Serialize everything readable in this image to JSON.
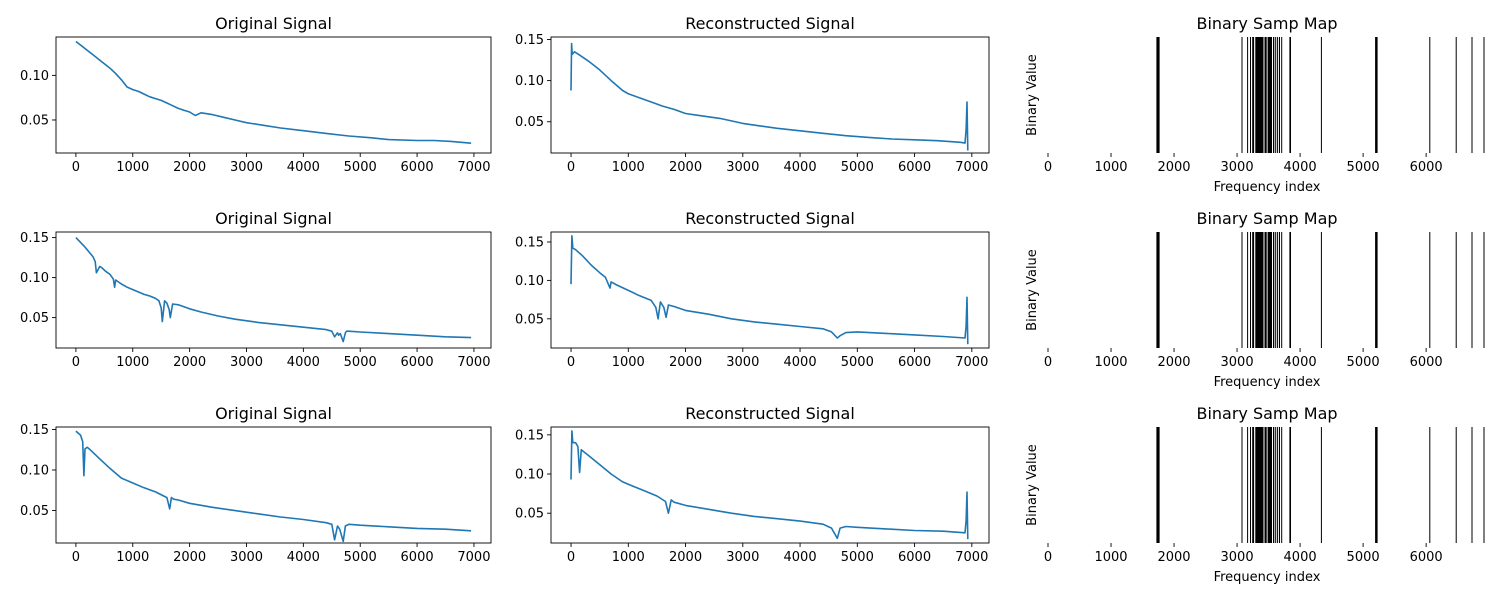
{
  "chart_data": [
    {
      "type": "line",
      "title": "Original Signal",
      "xlabel": "",
      "ylabel": "",
      "xlim": [
        -350,
        7300
      ],
      "ylim": [
        0.013,
        0.143
      ],
      "xticks": [
        0,
        1000,
        2000,
        3000,
        4000,
        5000,
        6000,
        7000
      ],
      "yticks": [
        0.05,
        0.1
      ],
      "ytick_labels": [
        "0.05",
        "0.10"
      ],
      "color": "#1f77b4",
      "legend": "none",
      "series": [
        {
          "x": [
            0,
            100,
            200,
            300,
            400,
            500,
            600,
            700,
            800,
            900,
            1000,
            1100,
            1200,
            1300,
            1400,
            1500,
            1600,
            1700,
            1800,
            1900,
            2000,
            2100,
            2200,
            2300,
            2400,
            2600,
            2800,
            3000,
            3300,
            3600,
            4000,
            4400,
            4800,
            5200,
            5500,
            6000,
            6300,
            6600,
            6950
          ],
          "y": [
            0.138,
            0.133,
            0.128,
            0.123,
            0.118,
            0.113,
            0.108,
            0.102,
            0.095,
            0.087,
            0.084,
            0.082,
            0.079,
            0.076,
            0.074,
            0.072,
            0.069,
            0.066,
            0.063,
            0.061,
            0.059,
            0.055,
            0.058,
            0.057,
            0.056,
            0.053,
            0.05,
            0.047,
            0.044,
            0.041,
            0.038,
            0.035,
            0.032,
            0.03,
            0.028,
            0.027,
            0.027,
            0.026,
            0.024
          ]
        }
      ]
    },
    {
      "type": "line",
      "title": "Reconstructed Signal",
      "xlabel": "",
      "ylabel": "",
      "xlim": [
        -350,
        7300
      ],
      "ylim": [
        0.012,
        0.153
      ],
      "xticks": [
        0,
        1000,
        2000,
        3000,
        4000,
        5000,
        6000,
        7000
      ],
      "yticks": [
        0.05,
        0.1,
        0.15
      ],
      "ytick_labels": [
        "0.05",
        "0.10",
        "0.15"
      ],
      "color": "#1f77b4",
      "legend": "none",
      "series": [
        {
          "x": [
            0,
            10,
            20,
            60,
            150,
            300,
            500,
            700,
            900,
            1000,
            1200,
            1400,
            1600,
            1800,
            2000,
            2200,
            2400,
            2600,
            2800,
            3000,
            3300,
            3600,
            4000,
            4400,
            4800,
            5200,
            5600,
            6000,
            6400,
            6800,
            6880,
            6900,
            6915,
            6930
          ],
          "y": [
            0.088,
            0.145,
            0.132,
            0.135,
            0.131,
            0.124,
            0.113,
            0.1,
            0.088,
            0.084,
            0.079,
            0.074,
            0.069,
            0.065,
            0.06,
            0.058,
            0.056,
            0.054,
            0.051,
            0.048,
            0.045,
            0.042,
            0.039,
            0.036,
            0.033,
            0.031,
            0.029,
            0.028,
            0.027,
            0.025,
            0.024,
            0.04,
            0.074,
            0.015
          ]
        }
      ]
    },
    {
      "type": "heatmap",
      "title": "Binary Samp Map",
      "xlabel": "Frequency index",
      "ylabel": "Binary Value",
      "xlim": [
        0,
        6950
      ],
      "xticks": [
        0,
        1000,
        2000,
        3000,
        4000,
        5000,
        6000
      ],
      "yticks": [],
      "values": [
        0,
        1
      ],
      "colors": [
        "#ffffff",
        "#000000"
      ],
      "legend": "none",
      "sampled_index_ranges": [
        [
          1720,
          1770
        ],
        [
          3070,
          3085
        ],
        [
          3160,
          3175
        ],
        [
          3205,
          3215
        ],
        [
          3240,
          3270
        ],
        [
          3290,
          3420
        ],
        [
          3435,
          3470
        ],
        [
          3485,
          3555
        ],
        [
          3570,
          3590
        ],
        [
          3605,
          3615
        ],
        [
          3635,
          3650
        ],
        [
          3665,
          3675
        ],
        [
          3700,
          3710
        ],
        [
          3830,
          3855
        ],
        [
          4330,
          4340
        ],
        [
          5190,
          5230
        ],
        [
          6050,
          6060
        ],
        [
          6470,
          6480
        ],
        [
          6720,
          6735
        ],
        [
          6910,
          6925
        ]
      ]
    },
    {
      "type": "line",
      "title": "Original Signal",
      "xlabel": "",
      "ylabel": "",
      "xlim": [
        -350,
        7300
      ],
      "ylim": [
        0.012,
        0.157
      ],
      "xticks": [
        0,
        1000,
        2000,
        3000,
        4000,
        5000,
        6000,
        7000
      ],
      "yticks": [
        0.05,
        0.1,
        0.15
      ],
      "ytick_labels": [
        "0.05",
        "0.10",
        "0.15"
      ],
      "color": "#1f77b4",
      "legend": "none",
      "series": [
        {
          "x": [
            0,
            150,
            300,
            340,
            360,
            420,
            460,
            520,
            600,
            660,
            680,
            700,
            740,
            800,
            900,
            1000,
            1100,
            1200,
            1300,
            1400,
            1460,
            1500,
            1520,
            1560,
            1600,
            1640,
            1660,
            1700,
            1800,
            2000,
            2200,
            2500,
            2800,
            3200,
            3600,
            4000,
            4400,
            4500,
            4550,
            4600,
            4620,
            4650,
            4700,
            4740,
            4760,
            4800,
            5000,
            5500,
            6000,
            6500,
            6950
          ],
          "y": [
            0.15,
            0.139,
            0.126,
            0.12,
            0.106,
            0.114,
            0.112,
            0.108,
            0.104,
            0.098,
            0.088,
            0.097,
            0.095,
            0.092,
            0.088,
            0.085,
            0.082,
            0.079,
            0.077,
            0.074,
            0.071,
            0.062,
            0.045,
            0.071,
            0.068,
            0.06,
            0.05,
            0.067,
            0.066,
            0.061,
            0.057,
            0.052,
            0.048,
            0.044,
            0.041,
            0.038,
            0.035,
            0.033,
            0.026,
            0.031,
            0.028,
            0.03,
            0.02,
            0.031,
            0.033,
            0.033,
            0.032,
            0.03,
            0.028,
            0.026,
            0.025
          ]
        }
      ]
    },
    {
      "type": "line",
      "title": "Reconstructed Signal",
      "xlabel": "",
      "ylabel": "",
      "xlim": [
        -350,
        7300
      ],
      "ylim": [
        0.012,
        0.163
      ],
      "xticks": [
        0,
        1000,
        2000,
        3000,
        4000,
        5000,
        6000,
        7000
      ],
      "yticks": [
        0.05,
        0.1,
        0.15
      ],
      "ytick_labels": [
        "0.05",
        "0.10",
        "0.15"
      ],
      "color": "#1f77b4",
      "legend": "none",
      "series": [
        {
          "x": [
            0,
            15,
            30,
            80,
            200,
            350,
            500,
            600,
            680,
            700,
            800,
            1000,
            1200,
            1400,
            1480,
            1520,
            1560,
            1620,
            1660,
            1700,
            1800,
            2000,
            2400,
            2800,
            3200,
            3600,
            4000,
            4400,
            4550,
            4650,
            4700,
            4800,
            5000,
            5500,
            6000,
            6500,
            6880,
            6900,
            6915,
            6930
          ],
          "y": [
            0.095,
            0.158,
            0.142,
            0.14,
            0.132,
            0.12,
            0.11,
            0.104,
            0.09,
            0.098,
            0.094,
            0.087,
            0.08,
            0.074,
            0.065,
            0.05,
            0.072,
            0.065,
            0.052,
            0.068,
            0.066,
            0.061,
            0.056,
            0.05,
            0.046,
            0.043,
            0.04,
            0.037,
            0.033,
            0.025,
            0.028,
            0.032,
            0.033,
            0.031,
            0.029,
            0.027,
            0.025,
            0.04,
            0.078,
            0.017
          ]
        }
      ]
    },
    {
      "type": "heatmap",
      "title": "Binary Samp Map",
      "xlabel": "Frequency index",
      "ylabel": "Binary Value",
      "xlim": [
        0,
        6950
      ],
      "xticks": [
        0,
        1000,
        2000,
        3000,
        4000,
        5000,
        6000
      ],
      "yticks": [],
      "values": [
        0,
        1
      ],
      "colors": [
        "#ffffff",
        "#000000"
      ],
      "legend": "none",
      "sampled_index_ranges": [
        [
          1720,
          1770
        ],
        [
          3070,
          3085
        ],
        [
          3160,
          3175
        ],
        [
          3205,
          3215
        ],
        [
          3240,
          3270
        ],
        [
          3290,
          3420
        ],
        [
          3435,
          3470
        ],
        [
          3485,
          3555
        ],
        [
          3570,
          3590
        ],
        [
          3605,
          3615
        ],
        [
          3635,
          3650
        ],
        [
          3665,
          3675
        ],
        [
          3700,
          3710
        ],
        [
          3830,
          3855
        ],
        [
          4330,
          4340
        ],
        [
          5190,
          5230
        ],
        [
          6050,
          6060
        ],
        [
          6470,
          6480
        ],
        [
          6720,
          6735
        ],
        [
          6910,
          6925
        ]
      ]
    },
    {
      "type": "line",
      "title": "Original Signal",
      "xlabel": "",
      "ylabel": "",
      "xlim": [
        -350,
        7300
      ],
      "ylim": [
        0.01,
        0.153
      ],
      "xticks": [
        0,
        1000,
        2000,
        3000,
        4000,
        5000,
        6000,
        7000
      ],
      "yticks": [
        0.05,
        0.1,
        0.15
      ],
      "ytick_labels": [
        "0.05",
        "0.10",
        "0.15"
      ],
      "color": "#1f77b4",
      "legend": "none",
      "series": [
        {
          "x": [
            0,
            80,
            120,
            140,
            160,
            200,
            250,
            400,
            600,
            800,
            1000,
            1200,
            1400,
            1600,
            1650,
            1680,
            1720,
            1800,
            2000,
            2400,
            2800,
            3200,
            3600,
            4000,
            4400,
            4500,
            4550,
            4600,
            4640,
            4700,
            4740,
            4800,
            5000,
            5500,
            6000,
            6500,
            6950
          ],
          "y": [
            0.148,
            0.143,
            0.135,
            0.093,
            0.126,
            0.128,
            0.125,
            0.115,
            0.102,
            0.09,
            0.084,
            0.078,
            0.073,
            0.066,
            0.052,
            0.066,
            0.064,
            0.063,
            0.059,
            0.054,
            0.05,
            0.046,
            0.042,
            0.039,
            0.035,
            0.033,
            0.014,
            0.031,
            0.027,
            0.012,
            0.031,
            0.033,
            0.032,
            0.03,
            0.028,
            0.027,
            0.025
          ]
        }
      ]
    },
    {
      "type": "line",
      "title": "Reconstructed Signal",
      "xlabel": "",
      "ylabel": "",
      "xlim": [
        -350,
        7300
      ],
      "ylim": [
        0.012,
        0.16
      ],
      "xticks": [
        0,
        1000,
        2000,
        3000,
        4000,
        5000,
        6000,
        7000
      ],
      "yticks": [
        0.05,
        0.1,
        0.15
      ],
      "ytick_labels": [
        "0.05",
        "0.10",
        "0.15"
      ],
      "color": "#1f77b4",
      "legend": "none",
      "series": [
        {
          "x": [
            0,
            15,
            30,
            80,
            120,
            150,
            180,
            230,
            300,
            500,
            700,
            900,
            1100,
            1300,
            1500,
            1650,
            1700,
            1750,
            1800,
            2000,
            2400,
            2800,
            3200,
            3600,
            4000,
            4400,
            4550,
            4650,
            4700,
            4800,
            5000,
            5500,
            6000,
            6500,
            6880,
            6900,
            6915,
            6930
          ],
          "y": [
            0.093,
            0.155,
            0.14,
            0.14,
            0.135,
            0.102,
            0.131,
            0.128,
            0.124,
            0.112,
            0.1,
            0.09,
            0.084,
            0.078,
            0.072,
            0.065,
            0.05,
            0.067,
            0.064,
            0.06,
            0.055,
            0.05,
            0.046,
            0.043,
            0.04,
            0.036,
            0.031,
            0.018,
            0.031,
            0.033,
            0.032,
            0.03,
            0.028,
            0.027,
            0.025,
            0.04,
            0.077,
            0.017
          ]
        }
      ]
    },
    {
      "type": "heatmap",
      "title": "Binary Samp Map",
      "xlabel": "Frequency index",
      "ylabel": "Binary Value",
      "xlim": [
        0,
        6950
      ],
      "xticks": [
        0,
        1000,
        2000,
        3000,
        4000,
        5000,
        6000
      ],
      "yticks": [],
      "values": [
        0,
        1
      ],
      "colors": [
        "#ffffff",
        "#000000"
      ],
      "legend": "none",
      "sampled_index_ranges": [
        [
          1720,
          1770
        ],
        [
          3070,
          3085
        ],
        [
          3160,
          3175
        ],
        [
          3205,
          3215
        ],
        [
          3240,
          3270
        ],
        [
          3290,
          3420
        ],
        [
          3435,
          3470
        ],
        [
          3485,
          3555
        ],
        [
          3570,
          3590
        ],
        [
          3605,
          3615
        ],
        [
          3635,
          3650
        ],
        [
          3665,
          3675
        ],
        [
          3700,
          3710
        ],
        [
          3830,
          3855
        ],
        [
          4330,
          4340
        ],
        [
          5190,
          5230
        ],
        [
          6050,
          6060
        ],
        [
          6470,
          6480
        ],
        [
          6720,
          6735
        ],
        [
          6910,
          6925
        ]
      ]
    }
  ]
}
